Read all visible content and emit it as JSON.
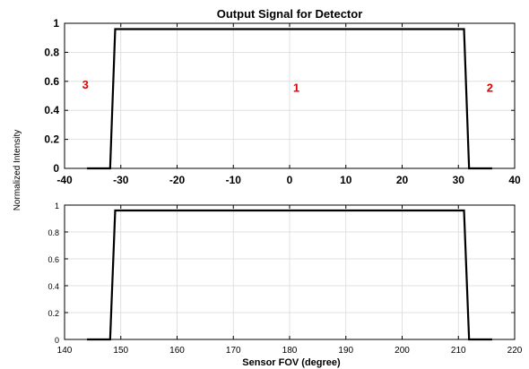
{
  "shared_ylabel": "Normalized Intensity",
  "chart_data": [
    {
      "type": "line",
      "title": "Output Signal for Detector",
      "xlabel": "",
      "ylabel": "",
      "xlim": [
        -40,
        40
      ],
      "ylim": [
        0,
        1
      ],
      "xticks": [
        -40,
        -30,
        -20,
        -10,
        0,
        10,
        20,
        30,
        40
      ],
      "yticks": [
        0,
        0.2,
        0.4,
        0.6,
        0.8,
        1
      ],
      "xtick_labels": [
        "-40",
        "-30",
        "-20",
        "-10",
        "0",
        "10",
        "20",
        "30",
        "40"
      ],
      "ytick_labels": [
        "0",
        "0.2",
        "0.4",
        "0.6",
        "0.8",
        "1"
      ],
      "grid": true,
      "series": [
        {
          "x": [
            -36,
            -31.9,
            -31,
            31,
            31.9,
            36
          ],
          "y": [
            0,
            0,
            0.96,
            0.96,
            0,
            0
          ]
        }
      ],
      "annotations": [
        {
          "text": "3",
          "x": -36.3,
          "y": 0.58
        },
        {
          "text": "1",
          "x": 1.2,
          "y": 0.56
        },
        {
          "text": "2",
          "x": 35.6,
          "y": 0.56
        }
      ]
    },
    {
      "type": "line",
      "title": "",
      "xlabel": "Sensor FOV (degree)",
      "ylabel": "",
      "xlim": [
        140,
        220
      ],
      "ylim": [
        0,
        1
      ],
      "xticks": [
        140,
        150,
        160,
        170,
        180,
        190,
        200,
        210,
        220
      ],
      "yticks": [
        0,
        0.2,
        0.4,
        0.6,
        0.8,
        1
      ],
      "xtick_labels": [
        "140",
        "150",
        "160",
        "170",
        "180",
        "190",
        "200",
        "210",
        "220"
      ],
      "ytick_labels": [
        "0",
        "0.2",
        "0.4",
        "0.6",
        "0.8",
        "1"
      ],
      "grid": true,
      "series": [
        {
          "x": [
            144,
            148.1,
            149,
            211,
            211.9,
            216
          ],
          "y": [
            0,
            0,
            0.96,
            0.96,
            0,
            0
          ]
        }
      ],
      "annotations": []
    }
  ]
}
